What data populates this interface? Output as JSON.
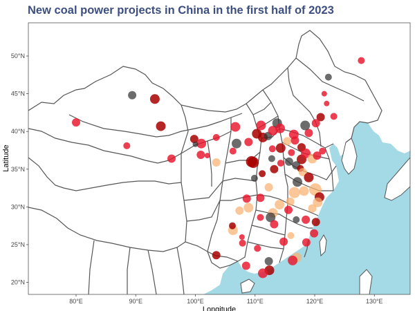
{
  "chart_data": {
    "type": "scatter",
    "title": "New coal power projects in China in the first half of 2023",
    "xlabel": "Longitude",
    "ylabel": "Latitude",
    "xlim": [
      72,
      136
    ],
    "ylim": [
      18.4,
      54.4
    ],
    "grid": false,
    "legend": "none",
    "x_ticks": [
      80,
      90,
      100,
      110,
      120,
      130
    ],
    "x_tick_labels": [
      "80°E",
      "90°E",
      "100°E",
      "110°E",
      "120°E",
      "130°E"
    ],
    "y_ticks": [
      20,
      25,
      30,
      35,
      40,
      45,
      50
    ],
    "y_tick_labels": [
      "20°N",
      "25°N",
      "30°N",
      "35°N",
      "40°N",
      "45°N",
      "50°N"
    ],
    "colors": {
      "land": "#ffffff",
      "sea": "#a4d9e6",
      "border": "#555555",
      "red": "#e8162c",
      "dark_red": "#a80000",
      "orange": "#fbb270",
      "gray": "#333333",
      "title": "#3d4f80"
    },
    "points": [
      {
        "lon": 80.0,
        "lat": 41.2,
        "size": 6,
        "color": "red"
      },
      {
        "lon": 89.4,
        "lat": 44.8,
        "size": 6,
        "color": "gray"
      },
      {
        "lon": 93.2,
        "lat": 44.3,
        "size": 7,
        "color": "dark_red"
      },
      {
        "lon": 94.2,
        "lat": 40.7,
        "size": 7,
        "color": "dark_red"
      },
      {
        "lon": 88.5,
        "lat": 38.1,
        "size": 5,
        "color": "red"
      },
      {
        "lon": 96.0,
        "lat": 36.4,
        "size": 6,
        "color": "red"
      },
      {
        "lon": 99.8,
        "lat": 39.0,
        "size": 6,
        "color": "dark_red"
      },
      {
        "lon": 101.0,
        "lat": 38.4,
        "size": 7,
        "color": "red"
      },
      {
        "lon": 103.5,
        "lat": 39.2,
        "size": 5,
        "color": "red"
      },
      {
        "lon": 100.9,
        "lat": 36.9,
        "size": 6,
        "color": "red"
      },
      {
        "lon": 102.0,
        "lat": 36.8,
        "size": 4,
        "color": "red"
      },
      {
        "lon": 103.5,
        "lat": 35.9,
        "size": 6,
        "color": "orange"
      },
      {
        "lon": 106.9,
        "lat": 38.4,
        "size": 7,
        "color": "gray"
      },
      {
        "lon": 106.7,
        "lat": 40.6,
        "size": 7,
        "color": "red"
      },
      {
        "lon": 106.3,
        "lat": 37.4,
        "size": 5,
        "color": "red"
      },
      {
        "lon": 108.9,
        "lat": 38.6,
        "size": 6,
        "color": "red"
      },
      {
        "lon": 110.3,
        "lat": 39.7,
        "size": 7,
        "color": "dark_red"
      },
      {
        "lon": 111.0,
        "lat": 40.8,
        "size": 7,
        "color": "red"
      },
      {
        "lon": 111.3,
        "lat": 39.2,
        "size": 7,
        "color": "dark_red"
      },
      {
        "lon": 109.4,
        "lat": 36.0,
        "size": 8,
        "color": "dark_red"
      },
      {
        "lon": 109.9,
        "lat": 33.8,
        "size": 5,
        "color": "gray"
      },
      {
        "lon": 112.2,
        "lat": 39.4,
        "size": 6,
        "color": "gray"
      },
      {
        "lon": 113.0,
        "lat": 40.1,
        "size": 7,
        "color": "red"
      },
      {
        "lon": 113.7,
        "lat": 41.1,
        "size": 7,
        "color": "gray"
      },
      {
        "lon": 114.2,
        "lat": 40.4,
        "size": 7,
        "color": "red"
      },
      {
        "lon": 112.9,
        "lat": 37.7,
        "size": 5,
        "color": "red"
      },
      {
        "lon": 114.3,
        "lat": 37.8,
        "size": 7,
        "color": "dark_red"
      },
      {
        "lon": 115.4,
        "lat": 38.7,
        "size": 6,
        "color": "orange"
      },
      {
        "lon": 116.5,
        "lat": 39.6,
        "size": 7,
        "color": "red"
      },
      {
        "lon": 116.7,
        "lat": 38.8,
        "size": 6,
        "color": "red"
      },
      {
        "lon": 114.3,
        "lat": 35.8,
        "size": 5,
        "color": "red"
      },
      {
        "lon": 115.7,
        "lat": 36.0,
        "size": 6,
        "color": "gray"
      },
      {
        "lon": 116.1,
        "lat": 37.2,
        "size": 5,
        "color": "red"
      },
      {
        "lon": 117.8,
        "lat": 37.9,
        "size": 6,
        "color": "dark_red"
      },
      {
        "lon": 119.0,
        "lat": 39.8,
        "size": 6,
        "color": "red"
      },
      {
        "lon": 117.8,
        "lat": 36.3,
        "size": 7,
        "color": "dark_red"
      },
      {
        "lon": 118.5,
        "lat": 37.1,
        "size": 7,
        "color": "red"
      },
      {
        "lon": 116.9,
        "lat": 35.5,
        "size": 6,
        "color": "gray"
      },
      {
        "lon": 117.6,
        "lat": 35.1,
        "size": 5,
        "color": "dark_red"
      },
      {
        "lon": 119.6,
        "lat": 36.4,
        "size": 7,
        "color": "orange"
      },
      {
        "lon": 120.4,
        "lat": 36.8,
        "size": 6,
        "color": "red"
      },
      {
        "lon": 118.0,
        "lat": 34.6,
        "size": 6,
        "color": "orange"
      },
      {
        "lon": 119.0,
        "lat": 33.9,
        "size": 7,
        "color": "dark_red"
      },
      {
        "lon": 117.1,
        "lat": 33.3,
        "size": 7,
        "color": "gray"
      },
      {
        "lon": 116.6,
        "lat": 31.9,
        "size": 8,
        "color": "orange"
      },
      {
        "lon": 118.2,
        "lat": 32.1,
        "size": 7,
        "color": "orange"
      },
      {
        "lon": 120.1,
        "lat": 32.3,
        "size": 9,
        "color": "orange"
      },
      {
        "lon": 120.8,
        "lat": 31.3,
        "size": 7,
        "color": "dark_red"
      },
      {
        "lon": 120.5,
        "lat": 30.6,
        "size": 7,
        "color": "orange"
      },
      {
        "lon": 119.6,
        "lat": 29.8,
        "size": 6,
        "color": "orange"
      },
      {
        "lon": 115.9,
        "lat": 30.7,
        "size": 6,
        "color": "orange"
      },
      {
        "lon": 114.1,
        "lat": 30.3,
        "size": 7,
        "color": "orange"
      },
      {
        "lon": 113.0,
        "lat": 29.2,
        "size": 7,
        "color": "orange"
      },
      {
        "lon": 112.6,
        "lat": 28.6,
        "size": 7,
        "color": "gray"
      },
      {
        "lon": 113.2,
        "lat": 27.7,
        "size": 6,
        "color": "red"
      },
      {
        "lon": 115.6,
        "lat": 29.6,
        "size": 6,
        "color": "red"
      },
      {
        "lon": 116.9,
        "lat": 28.3,
        "size": 5,
        "color": "gray"
      },
      {
        "lon": 118.5,
        "lat": 28.3,
        "size": 6,
        "color": "red"
      },
      {
        "lon": 120.2,
        "lat": 28.0,
        "size": 6,
        "color": "dark_red"
      },
      {
        "lon": 119.9,
        "lat": 26.5,
        "size": 6,
        "color": "red"
      },
      {
        "lon": 118.6,
        "lat": 25.3,
        "size": 6,
        "color": "red"
      },
      {
        "lon": 117.0,
        "lat": 23.3,
        "size": 7,
        "color": "orange"
      },
      {
        "lon": 116.3,
        "lat": 22.9,
        "size": 7,
        "color": "red"
      },
      {
        "lon": 114.8,
        "lat": 25.4,
        "size": 6,
        "color": "red"
      },
      {
        "lon": 112.3,
        "lat": 22.8,
        "size": 6,
        "color": "gray"
      },
      {
        "lon": 112.4,
        "lat": 21.6,
        "size": 7,
        "color": "dark_red"
      },
      {
        "lon": 111.3,
        "lat": 21.2,
        "size": 7,
        "color": "red"
      },
      {
        "lon": 108.5,
        "lat": 22.2,
        "size": 6,
        "color": "red"
      },
      {
        "lon": 110.4,
        "lat": 24.5,
        "size": 5,
        "color": "red"
      },
      {
        "lon": 107.8,
        "lat": 26.0,
        "size": 4,
        "color": "red"
      },
      {
        "lon": 106.3,
        "lat": 26.9,
        "size": 7,
        "color": "orange"
      },
      {
        "lon": 106.2,
        "lat": 27.5,
        "size": 5,
        "color": "dark_red"
      },
      {
        "lon": 107.9,
        "lat": 25.2,
        "size": 5,
        "color": "red"
      },
      {
        "lon": 103.5,
        "lat": 23.6,
        "size": 6,
        "color": "dark_red"
      },
      {
        "lon": 108.9,
        "lat": 29.9,
        "size": 7,
        "color": "orange"
      },
      {
        "lon": 107.4,
        "lat": 29.5,
        "size": 6,
        "color": "orange"
      },
      {
        "lon": 110.9,
        "lat": 31.2,
        "size": 6,
        "color": "red"
      },
      {
        "lon": 108.6,
        "lat": 31.1,
        "size": 6,
        "color": "red"
      },
      {
        "lon": 111.2,
        "lat": 34.4,
        "size": 5,
        "color": "dark_red"
      },
      {
        "lon": 113.2,
        "lat": 35.0,
        "size": 6,
        "color": "dark_red"
      },
      {
        "lon": 112.3,
        "lat": 32.6,
        "size": 6,
        "color": "orange"
      },
      {
        "lon": 109.7,
        "lat": 35.9,
        "size": 8,
        "color": "dark_red"
      },
      {
        "lon": 122.3,
        "lat": 47.2,
        "size": 5,
        "color": "gray"
      },
      {
        "lon": 121.6,
        "lat": 45.0,
        "size": 4,
        "color": "red"
      },
      {
        "lon": 122.0,
        "lat": 43.7,
        "size": 4,
        "color": "red"
      },
      {
        "lon": 123.2,
        "lat": 42.0,
        "size": 5,
        "color": "red"
      },
      {
        "lon": 121.0,
        "lat": 41.9,
        "size": 6,
        "color": "dark_red"
      },
      {
        "lon": 120.2,
        "lat": 41.1,
        "size": 6,
        "color": "red"
      },
      {
        "lon": 118.4,
        "lat": 40.8,
        "size": 7,
        "color": "gray"
      },
      {
        "lon": 127.8,
        "lat": 49.4,
        "size": 5,
        "color": "red"
      },
      {
        "lon": 121.3,
        "lat": 37.4,
        "size": 5,
        "color": "red"
      },
      {
        "lon": 112.8,
        "lat": 36.4,
        "size": 5,
        "color": "gray"
      },
      {
        "lon": 100.0,
        "lat": 38.3,
        "size": 4,
        "color": "gray"
      },
      {
        "lon": 116.0,
        "lat": 26.2,
        "size": 5,
        "color": "orange"
      },
      {
        "lon": 110.9,
        "lat": 28.6,
        "size": 5,
        "color": "red"
      }
    ]
  }
}
